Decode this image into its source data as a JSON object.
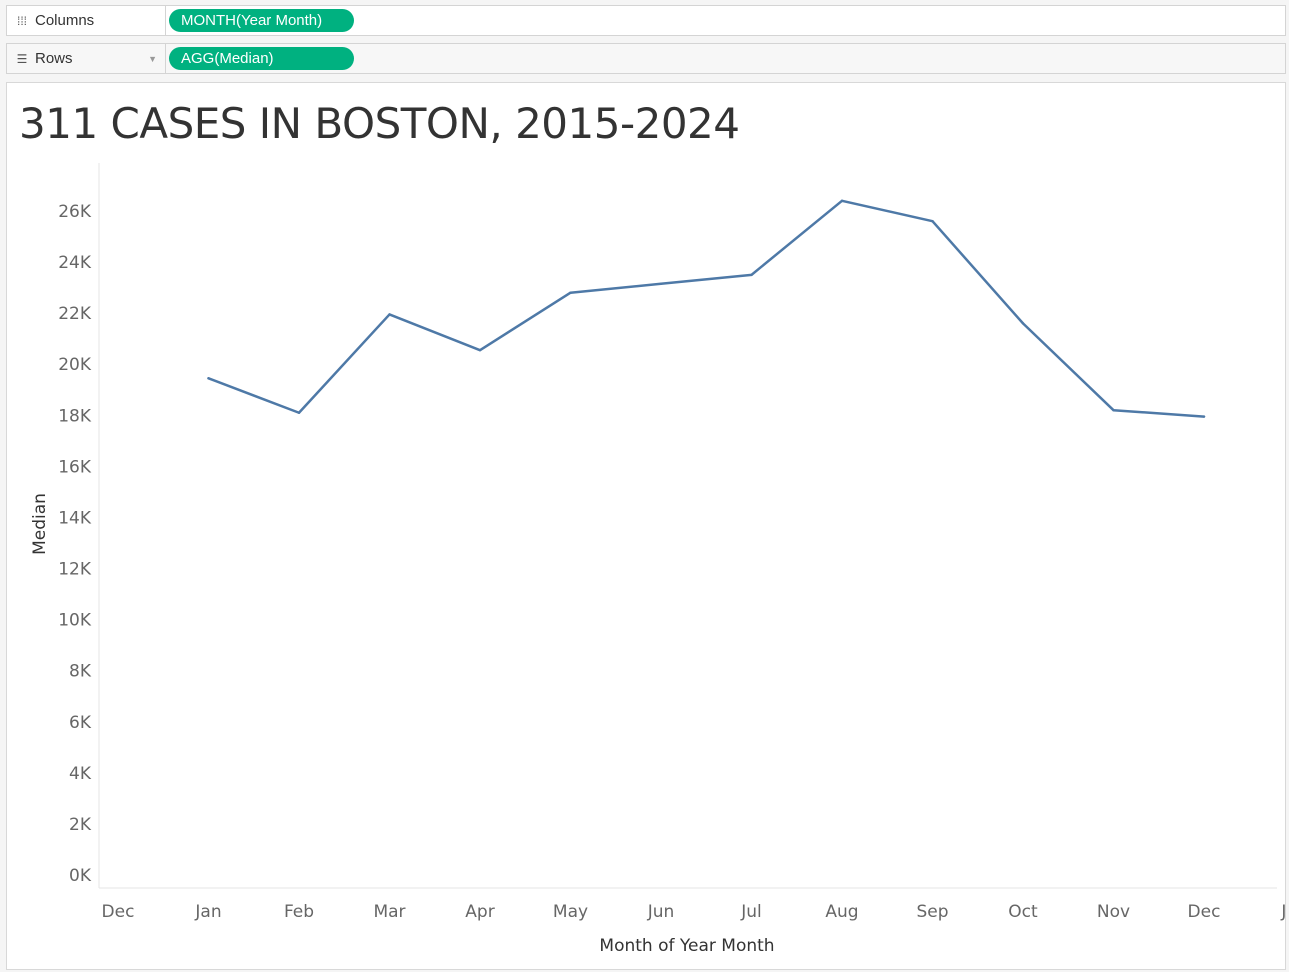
{
  "shelves": {
    "columns": {
      "label": "Columns",
      "icon": "columns-icon",
      "pill": "MONTH(Year Month)"
    },
    "rows": {
      "label": "Rows",
      "icon": "rows-icon",
      "pill": "AGG(Median)"
    }
  },
  "colors": {
    "pill": "#00b180",
    "line": "#4e79a7"
  },
  "chart_data": {
    "type": "line",
    "title": "311 CASES IN BOSTON, 2015-2024",
    "xlabel": "Month of Year Month",
    "ylabel": "Median",
    "x_tick_labels": [
      "Dec",
      "Jan",
      "Feb",
      "Mar",
      "Apr",
      "May",
      "Jun",
      "Jul",
      "Aug",
      "Sep",
      "Oct",
      "Nov",
      "Dec",
      "Jan"
    ],
    "categories": [
      "Jan",
      "Feb",
      "Mar",
      "Apr",
      "May",
      "Jun",
      "Jul",
      "Aug",
      "Sep",
      "Oct",
      "Nov",
      "Dec"
    ],
    "series": [
      {
        "values": [
          19450,
          18100,
          21950,
          20550,
          22800,
          23150,
          23500,
          26400,
          25600,
          21600,
          18200,
          17950
        ]
      }
    ],
    "yticks": [
      0,
      2000,
      4000,
      6000,
      8000,
      10000,
      12000,
      14000,
      16000,
      18000,
      20000,
      22000,
      24000,
      26000
    ],
    "ytick_labels": [
      "0K",
      "2K",
      "4K",
      "6K",
      "8K",
      "10K",
      "12K",
      "14K",
      "16K",
      "18K",
      "20K",
      "22K",
      "24K",
      "26K"
    ],
    "ylim": [
      0,
      26000
    ],
    "grid": false,
    "legend": "none"
  }
}
